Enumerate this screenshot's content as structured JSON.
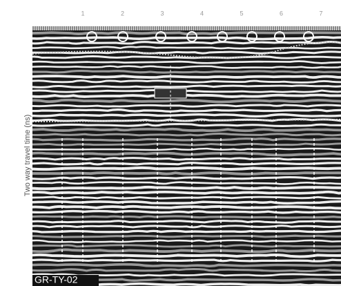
{
  "profile_label": "GR-TY-02",
  "y_axis_label": "Two way travel time (ns)",
  "x_axis": {
    "tick_labels": [
      "1",
      "2",
      "3",
      "4",
      "5",
      "6",
      "7"
    ]
  }
}
